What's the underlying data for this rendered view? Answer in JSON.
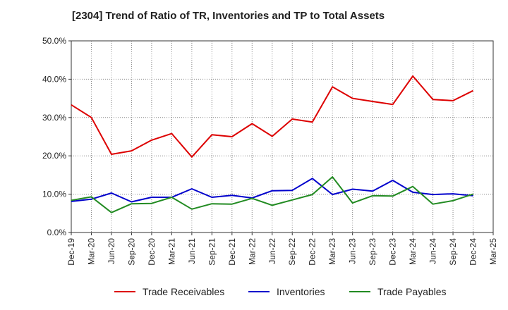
{
  "chart_data": {
    "type": "line",
    "title": "[2304]  Trend of Ratio of TR, Inventories and TP to Total Assets",
    "xlabel": "",
    "ylabel": "",
    "ylim": [
      0,
      50
    ],
    "y_ticks": [
      "0.0%",
      "10.0%",
      "20.0%",
      "30.0%",
      "40.0%",
      "50.0%"
    ],
    "y_tick_values": [
      0,
      10,
      20,
      30,
      40,
      50
    ],
    "x": [
      "Dec-19",
      "Mar-20",
      "Jun-20",
      "Sep-20",
      "Dec-20",
      "Mar-21",
      "Jun-21",
      "Sep-21",
      "Dec-21",
      "Mar-22",
      "Jun-22",
      "Sep-22",
      "Dec-22",
      "Mar-23",
      "Jun-23",
      "Sep-23",
      "Dec-23",
      "Mar-24",
      "Jun-24",
      "Sep-24",
      "Dec-24"
    ],
    "x_ticks": [
      "Dec-19",
      "Mar-20",
      "Jun-20",
      "Sep-20",
      "Dec-20",
      "Mar-21",
      "Jun-21",
      "Sep-21",
      "Dec-21",
      "Mar-22",
      "Jun-22",
      "Sep-22",
      "Dec-22",
      "Mar-23",
      "Jun-23",
      "Sep-23",
      "Dec-23",
      "Mar-24",
      "Jun-24",
      "Sep-24",
      "Dec-24",
      "Mar-25"
    ],
    "grid": true,
    "legend_position": "bottom",
    "series": [
      {
        "name": "Trade Receivables",
        "color": "#dd0000",
        "values": [
          33.3,
          30.0,
          20.4,
          21.3,
          24.1,
          25.8,
          19.7,
          25.5,
          25.0,
          28.4,
          25.1,
          29.6,
          28.8,
          38.0,
          35.0,
          34.2,
          33.4,
          40.8,
          34.7,
          34.4,
          37.0
        ]
      },
      {
        "name": "Inventories",
        "color": "#0000cc",
        "values": [
          8.1,
          8.7,
          10.3,
          8.0,
          9.2,
          9.2,
          11.4,
          9.2,
          9.7,
          9.0,
          10.9,
          11.0,
          14.1,
          9.9,
          11.3,
          10.8,
          13.6,
          10.5,
          9.9,
          10.1,
          9.6
        ]
      },
      {
        "name": "Trade Payables",
        "color": "#228b22",
        "values": [
          8.4,
          9.3,
          5.2,
          7.5,
          7.6,
          9.2,
          6.1,
          7.5,
          7.4,
          8.9,
          7.1,
          8.5,
          9.9,
          14.5,
          7.7,
          9.6,
          9.5,
          12.0,
          7.4,
          8.3,
          10.0
        ]
      }
    ]
  }
}
